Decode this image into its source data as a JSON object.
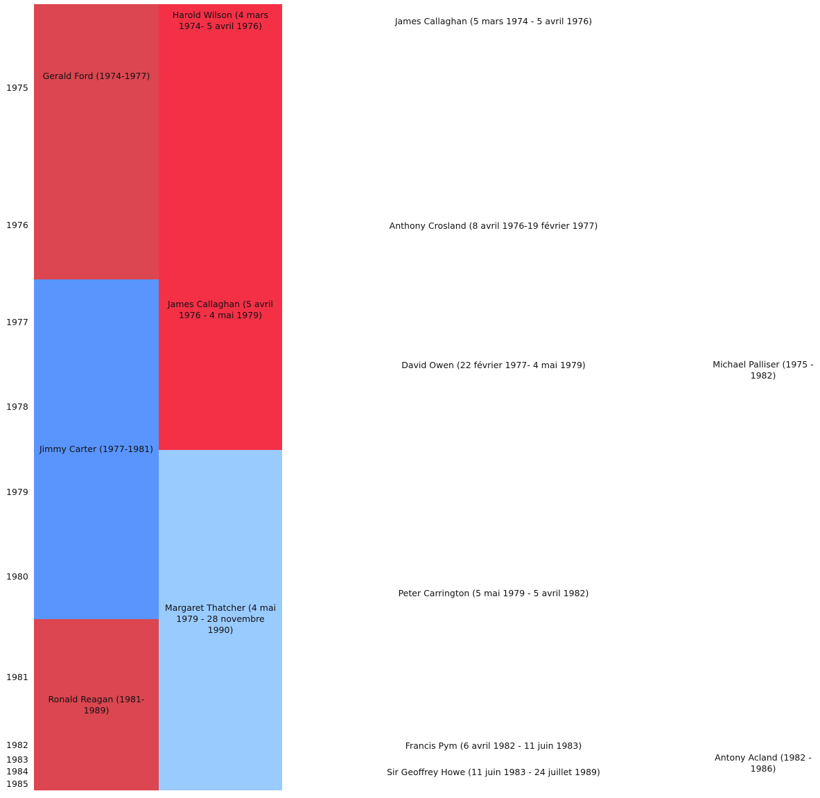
{
  "years": [
    {
      "label": "1975"
    },
    {
      "label": "1976"
    },
    {
      "label": "1977"
    },
    {
      "label": "1978"
    },
    {
      "label": "1979"
    },
    {
      "label": "1980"
    },
    {
      "label": "1981"
    },
    {
      "label": "1982"
    },
    {
      "label": "1983"
    },
    {
      "label": "1984"
    },
    {
      "label": "1985"
    }
  ],
  "us_presidents": [
    {
      "label": "Gerald Ford (1974-1977)",
      "color": "#db4650"
    },
    {
      "label": "Jimmy Carter (1977-1981)",
      "color": "#5995fd"
    },
    {
      "label": "Ronald Reagan (1981-1989)",
      "color": "#db4650"
    }
  ],
  "uk_prime_ministers": [
    {
      "label": "Harold Wilson (4 mars 1974- 5 avril 1976)",
      "color": "#f43047"
    },
    {
      "label": "James Callaghan (5 avril 1976 - 4 mai 1979)",
      "color": "#f43047"
    },
    {
      "label": "Margaret Thatcher (4 mai 1979 - 28 novembre 1990)",
      "color": "#99cbfe"
    }
  ],
  "foreign_secretaries": [
    {
      "label": "James Callaghan (5 mars 1974 - 5 avril 1976)"
    },
    {
      "label": "Anthony Crosland (8 avril 1976-19 février 1977)"
    },
    {
      "label": "David Owen (22 février 1977- 4 mai 1979)"
    },
    {
      "label": "Peter Carrington (5 mai 1979 - 5 avril 1982)"
    },
    {
      "label": "Francis Pym (6 avril 1982 - 11 juin 1983)"
    },
    {
      "label": "Sir Geoffrey Howe (11 juin 1983 - 24 juillet 1989)"
    }
  ],
  "ambassadors": [
    {
      "label": "Michael Palliser (1975 - 1982)"
    },
    {
      "label": "Antony Acland (1982 - 1986)"
    }
  ]
}
